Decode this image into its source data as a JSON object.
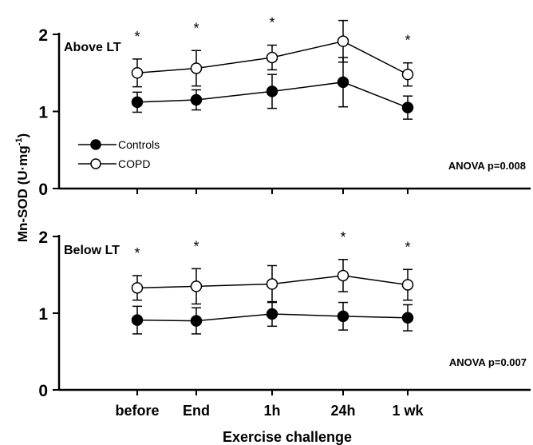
{
  "figure": {
    "ylabel_main": "Mn-SOD (U·mg",
    "ylabel_sup": "-1",
    "ylabel_close": ")",
    "xlabel": "Exercise challenge"
  },
  "chart_data": [
    {
      "type": "line",
      "title": "Above LT",
      "annotation": "ANOVA p=0.008",
      "categories": [
        "before",
        "End",
        "1h",
        "24h",
        "1 wk"
      ],
      "ylim": [
        0,
        2
      ],
      "yticks": [
        0,
        1,
        2
      ],
      "legend": {
        "placement": "left",
        "entries": [
          "Controls",
          "COPD"
        ]
      },
      "significance_marker": "*",
      "significant": [
        true,
        true,
        true,
        true,
        true
      ],
      "series": [
        {
          "name": "Controls",
          "marker": "filled-circle",
          "values": [
            1.12,
            1.15,
            1.26,
            1.38,
            1.05
          ],
          "errors": [
            0.13,
            0.13,
            0.22,
            0.32,
            0.15
          ]
        },
        {
          "name": "COPD",
          "marker": "open-circle",
          "values": [
            1.5,
            1.56,
            1.7,
            1.91,
            1.48
          ],
          "errors": [
            0.18,
            0.23,
            0.16,
            0.27,
            0.15
          ]
        }
      ]
    },
    {
      "type": "line",
      "title": "Below LT",
      "annotation": "ANOVA p=0.007",
      "categories": [
        "before",
        "End",
        "1h",
        "24h",
        "1 wk"
      ],
      "ylim": [
        0,
        2
      ],
      "yticks": [
        0,
        1,
        2
      ],
      "significance_marker": "*",
      "significant": [
        true,
        true,
        false,
        true,
        true
      ],
      "series": [
        {
          "name": "Controls",
          "marker": "filled-circle",
          "values": [
            0.91,
            0.9,
            0.99,
            0.96,
            0.94
          ],
          "errors": [
            0.18,
            0.17,
            0.16,
            0.18,
            0.17
          ]
        },
        {
          "name": "COPD",
          "marker": "open-circle",
          "values": [
            1.33,
            1.35,
            1.38,
            1.49,
            1.37
          ],
          "errors": [
            0.16,
            0.23,
            0.24,
            0.21,
            0.2
          ]
        }
      ]
    }
  ]
}
